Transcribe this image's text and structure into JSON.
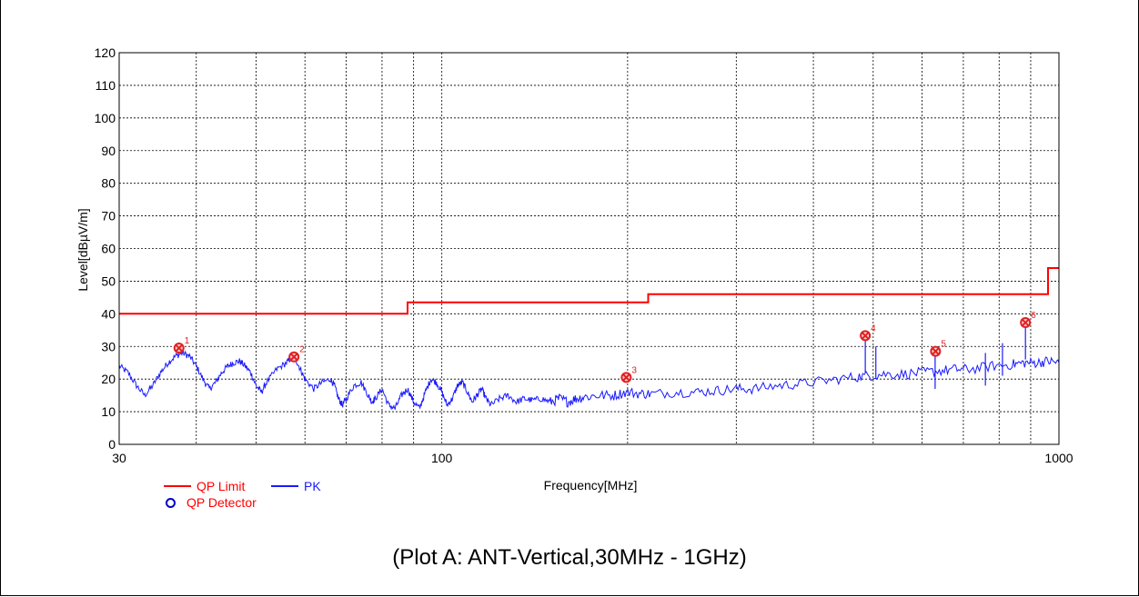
{
  "caption": "(Plot A: ANT-Vertical,30MHz - 1GHz)",
  "colors": {
    "qp_limit": "#ff0000",
    "pk": "#1a1aff",
    "qp_detector": "#0000cc",
    "marker": "#e02020",
    "grid": "#000000"
  },
  "chart_data": {
    "type": "line",
    "title": "",
    "xlabel": "Frequency[MHz]",
    "ylabel": "Level[dBµV/m]",
    "xscale": "log",
    "xlim": [
      30,
      1000
    ],
    "ylim": [
      0,
      120
    ],
    "yticks": [
      0,
      10,
      20,
      30,
      40,
      50,
      60,
      70,
      80,
      90,
      100,
      110,
      120
    ],
    "xtick_labels": [
      {
        "value": 30,
        "label": "30"
      },
      {
        "value": 100,
        "label": "100"
      },
      {
        "value": 1000,
        "label": "1000"
      }
    ],
    "grid": true,
    "legend": [
      {
        "name": "QP Limit",
        "style": "line",
        "color": "#ff0000"
      },
      {
        "name": "PK",
        "style": "line",
        "color": "#1a1aff"
      },
      {
        "name": "QP Detector",
        "style": "circle",
        "color": "#0000cc"
      }
    ],
    "series": [
      {
        "name": "QP Limit",
        "kind": "step",
        "points": [
          [
            30,
            40
          ],
          [
            88,
            40
          ],
          [
            88,
            43.5
          ],
          [
            216,
            43.5
          ],
          [
            216,
            46
          ],
          [
            960,
            46
          ],
          [
            960,
            54
          ],
          [
            1000,
            54
          ]
        ]
      },
      {
        "name": "PK",
        "kind": "noisy-line",
        "points": [
          [
            30,
            24
          ],
          [
            31,
            22
          ],
          [
            32,
            18
          ],
          [
            33,
            15
          ],
          [
            34,
            18
          ],
          [
            35,
            22
          ],
          [
            36,
            25
          ],
          [
            37,
            27
          ],
          [
            38,
            28
          ],
          [
            39,
            27
          ],
          [
            40,
            24
          ],
          [
            41,
            20
          ],
          [
            42,
            17
          ],
          [
            43,
            19
          ],
          [
            44,
            22
          ],
          [
            45,
            24
          ],
          [
            46,
            25
          ],
          [
            47,
            25.5
          ],
          [
            48,
            24
          ],
          [
            49,
            22
          ],
          [
            50,
            18
          ],
          [
            51,
            16
          ],
          [
            52,
            19
          ],
          [
            54,
            23
          ],
          [
            56,
            25
          ],
          [
            57,
            26.5
          ],
          [
            58,
            26
          ],
          [
            59,
            23
          ],
          [
            60,
            20
          ],
          [
            62,
            17
          ],
          [
            64,
            19
          ],
          [
            66,
            20
          ],
          [
            67,
            18
          ],
          [
            68,
            14
          ],
          [
            69,
            12
          ],
          [
            70,
            14
          ],
          [
            72,
            18
          ],
          [
            74,
            19
          ],
          [
            76,
            15
          ],
          [
            77,
            13
          ],
          [
            78,
            14
          ],
          [
            80,
            17
          ],
          [
            82,
            12
          ],
          [
            84,
            11
          ],
          [
            86,
            15
          ],
          [
            88,
            17
          ],
          [
            90,
            13
          ],
          [
            92,
            11
          ],
          [
            94,
            16
          ],
          [
            96,
            20
          ],
          [
            98,
            19
          ],
          [
            100,
            16
          ],
          [
            102,
            12
          ],
          [
            104,
            14
          ],
          [
            106,
            18
          ],
          [
            108,
            19
          ],
          [
            110,
            16
          ],
          [
            112,
            13
          ],
          [
            114,
            15
          ],
          [
            116,
            17
          ],
          [
            118,
            14
          ],
          [
            120,
            12
          ],
          [
            124,
            14
          ],
          [
            128,
            15
          ],
          [
            132,
            13
          ],
          [
            136,
            14
          ],
          [
            140,
            13.5
          ],
          [
            145,
            14
          ],
          [
            150,
            13
          ],
          [
            155,
            14
          ],
          [
            160,
            13
          ],
          [
            165,
            14
          ],
          [
            170,
            14.5
          ],
          [
            180,
            15
          ],
          [
            190,
            15
          ],
          [
            199,
            16
          ],
          [
            210,
            15.5
          ],
          [
            220,
            15.5
          ],
          [
            240,
            16
          ],
          [
            260,
            16
          ],
          [
            280,
            16.5
          ],
          [
            300,
            17
          ],
          [
            320,
            17
          ],
          [
            350,
            18
          ],
          [
            380,
            18.5
          ],
          [
            420,
            19.5
          ],
          [
            460,
            20.5
          ],
          [
            490,
            21
          ],
          [
            520,
            21.5
          ],
          [
            560,
            21.5
          ],
          [
            600,
            22
          ],
          [
            640,
            22.5
          ],
          [
            680,
            23
          ],
          [
            720,
            23
          ],
          [
            780,
            24
          ],
          [
            840,
            24.5
          ],
          [
            880,
            25
          ],
          [
            920,
            25
          ],
          [
            960,
            25.5
          ],
          [
            1000,
            25
          ]
        ]
      }
    ],
    "spikes": [
      {
        "x": 485.5,
        "y": 32
      },
      {
        "x": 505,
        "y": 30
      },
      {
        "x": 630,
        "y": 27
      },
      {
        "x": 760,
        "y": 28
      },
      {
        "x": 810,
        "y": 31
      },
      {
        "x": 882.5,
        "y": 36
      }
    ],
    "markers": [
      {
        "label": "1",
        "x": 37.5,
        "y": 29.5
      },
      {
        "label": "2",
        "x": 57.6,
        "y": 26.8
      },
      {
        "label": "3",
        "x": 199.0,
        "y": 20.5
      },
      {
        "label": "4",
        "x": 485.5,
        "y": 33.3
      },
      {
        "label": "5",
        "x": 631.0,
        "y": 28.5
      },
      {
        "label": "6",
        "x": 882.5,
        "y": 37.3
      }
    ]
  }
}
